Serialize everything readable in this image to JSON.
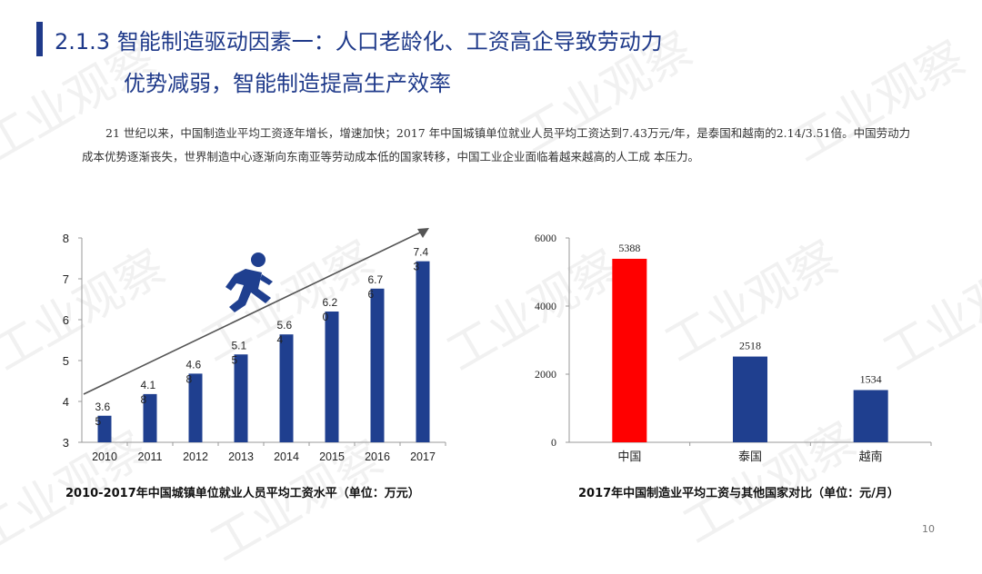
{
  "header": {
    "title_line1": "2.1.3 智能制造驱动因素一：人口老龄化、工资高企导致劳动力",
    "title_line2": "优势减弱，智能制造提高生产效率"
  },
  "body": {
    "paragraph": "21 世纪以来，中国制造业平均工资逐年增长，增速加快；2017 年中国城镇单位就业人员平均工资达到7.43万元/年，是泰国和越南的2.14/3.51倍。中国劳动力成本优势逐渐丧失，世界制造中心逐渐向东南亚等劳动成本低的国家转移，中国工业企业面临着越来越高的人工成 本压力。"
  },
  "watermark": "工业观察",
  "chart_data": [
    {
      "type": "bar",
      "categories": [
        "2010",
        "2011",
        "2012",
        "2013",
        "2014",
        "2015",
        "2016",
        "2017"
      ],
      "values": [
        3.65,
        4.18,
        4.68,
        5.15,
        5.64,
        6.2,
        6.76,
        7.43
      ],
      "labels": [
        "3.6\n5",
        "4.1\n8",
        "4.6\n8",
        "5.1\n5",
        "5.6\n4",
        "6.2\n0",
        "6.7\n6",
        "7.4\n3"
      ],
      "ylim": [
        3,
        8
      ],
      "yticks": [
        "3",
        "4",
        "5",
        "6",
        "7",
        "8"
      ],
      "color": "#1f3f8f",
      "title": "2010-2017年中国城镇单位就业人员平均工资水平（单位：万元）"
    },
    {
      "type": "bar",
      "categories": [
        "中国",
        "泰国",
        "越南"
      ],
      "values": [
        5388,
        2518,
        1534
      ],
      "labels": [
        "5388",
        "2518",
        "1534"
      ],
      "ylim": [
        0,
        6000
      ],
      "yticks": [
        "0",
        "2000",
        "4000",
        "6000"
      ],
      "colors": [
        "#ff0000",
        "#1f3f8f",
        "#1f3f8f"
      ],
      "title": "2017年中国制造业平均工资与其他国家对比（单位：元/月）"
    }
  ],
  "footer": {
    "page_number": "10"
  },
  "icons": {
    "runner": "running-person-icon",
    "trend": "trend-arrow"
  }
}
